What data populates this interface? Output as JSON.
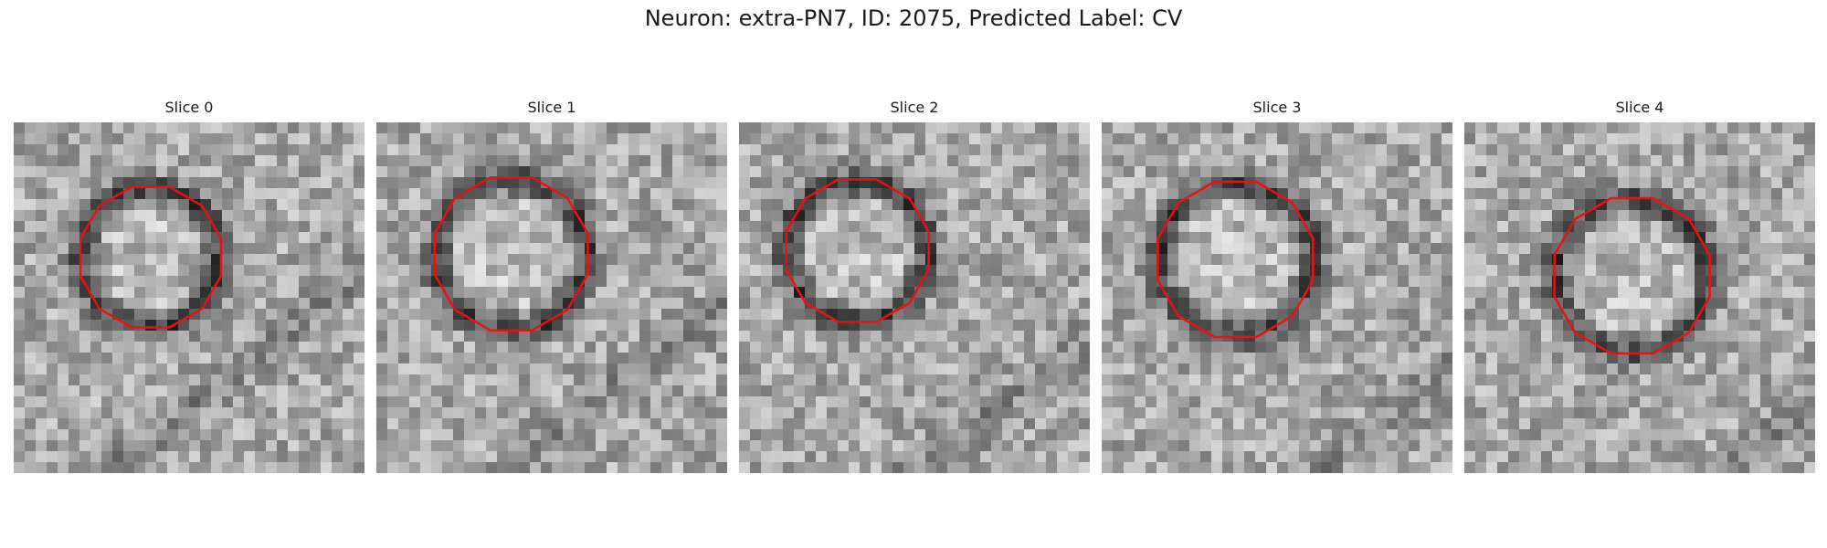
{
  "figure": {
    "title": "Neuron: extra-PN7, ID: 2075, Predicted Label: CV",
    "contour_color": "#e8120f",
    "colormap": "gray"
  },
  "panels": [
    {
      "label": "Slice 0"
    },
    {
      "label": "Slice 1"
    },
    {
      "label": "Slice 2"
    },
    {
      "label": "Slice 3"
    },
    {
      "label": "Slice 4"
    }
  ]
}
